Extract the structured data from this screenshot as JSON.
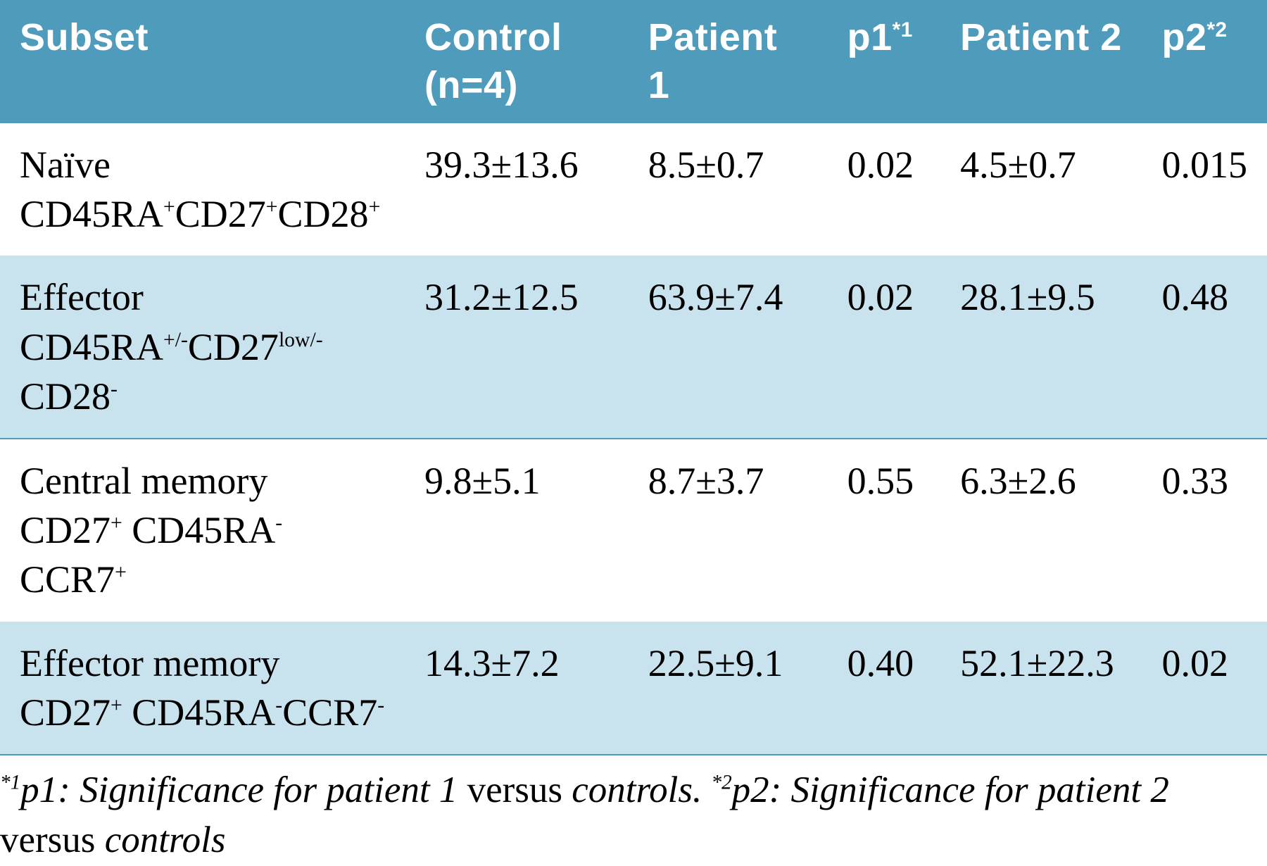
{
  "table": {
    "header": {
      "subset": "Subset",
      "control": "Control\n(n=4)",
      "patient1": "Patient 1",
      "p1_label": "p1",
      "p1_sup": "*1",
      "patient2": "Patient 2",
      "p2_label": "p2",
      "p2_sup": "*2"
    },
    "rows": [
      {
        "subset_name": "Naïve",
        "markers_html": "CD45RA<sup>+</sup>CD27<sup>+</sup>CD28<sup>+</sup>",
        "control": "39.3±13.6",
        "patient1": "8.5±0.7",
        "p1": "0.02",
        "patient2": "4.5±0.7",
        "p2": "0.015",
        "stripe": "white"
      },
      {
        "subset_name": "Effector",
        "markers_html": "CD45RA<sup>+/-</sup>CD27<sup>low/-</sup>CD28<sup>-</sup>",
        "control": "31.2±12.5",
        "patient1": "63.9±7.4",
        "p1": "0.02",
        "patient2": "28.1±9.5",
        "p2": "0.48",
        "stripe": "blue"
      },
      {
        "subset_name": "Central memory",
        "markers_html": "CD27<sup>+</sup> CD45RA<sup>-</sup>CCR7<sup>+</sup>",
        "control": "9.8±5.1",
        "patient1": "8.7±3.7",
        "p1": "0.55",
        "patient2": "6.3±2.6",
        "p2": "0.33",
        "stripe": "white"
      },
      {
        "subset_name": "Effector memory",
        "markers_html": "CD27<sup>+</sup> CD45RA<sup>-</sup>CCR7<sup>-</sup>",
        "control": "14.3±7.2",
        "patient1": "22.5±9.1",
        "p1": "0.40",
        "patient2": "52.1±22.3",
        "p2": "0.02",
        "stripe": "blue"
      }
    ],
    "footnote": {
      "f1_sup": "*1",
      "f1_label": "p1: Significance for patient 1",
      "f1_tail": " versus ",
      "f1_tail2": "controls. ",
      "f2_sup": "*2",
      "f2_label": "p2: Significance for patient 2",
      "f2_tail": " versus ",
      "f2_tail2": "controls"
    },
    "colors": {
      "header_bg": "#4f9bbb",
      "header_text": "#ffffff",
      "row_blue": "#c8e2ee",
      "row_white": "#ffffff",
      "border": "#4f9bbb"
    }
  }
}
